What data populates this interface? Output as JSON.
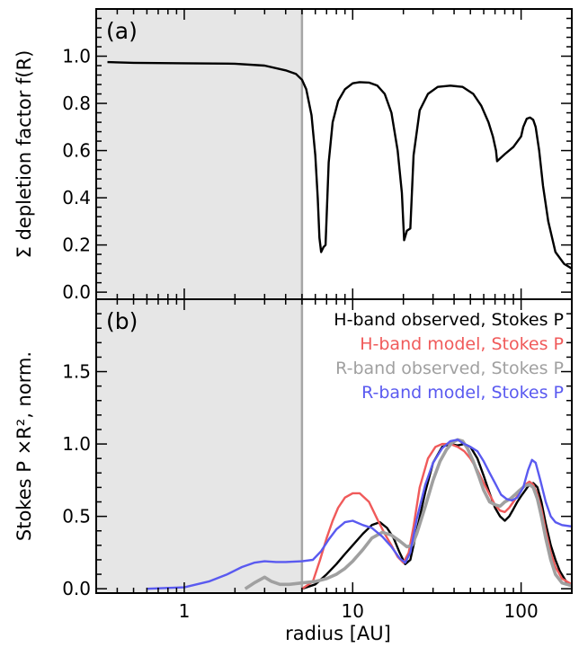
{
  "colors": {
    "shade": "#e6e6e6",
    "vline": "#a6a6a6",
    "black": "#000000",
    "red": "#f05a5a",
    "gray": "#a0a0a0",
    "blue": "#5a5af0"
  },
  "chart_data": [
    {
      "type": "line",
      "panel_label": "(a)",
      "ylabel": "Σ depletion factor f(R)",
      "xscale": "log",
      "xlim": [
        0.3,
        200
      ],
      "ylim": [
        -0.03,
        1.2
      ],
      "yticks": [
        0.0,
        0.2,
        0.4,
        0.6,
        0.8,
        1.0
      ],
      "yticklabels": [
        "0.0",
        "0.2",
        "0.4",
        "0.6",
        "0.8",
        "1.0"
      ],
      "shaded_region": [
        0.3,
        5
      ],
      "vline_x": 5,
      "series": [
        {
          "color": "#000000",
          "x": [
            0.35,
            0.5,
            1,
            2,
            3,
            4,
            4.6,
            5.0,
            5.3,
            5.7,
            6.0,
            6.2,
            6.35,
            6.5,
            6.7,
            6.9,
            7.2,
            7.6,
            8.2,
            9,
            10,
            11,
            12.5,
            14,
            15.5,
            17,
            18.5,
            19.6,
            20.2,
            21,
            22,
            23,
            25,
            28,
            32,
            38,
            45,
            52,
            58,
            64,
            68,
            71,
            72,
            80,
            90,
            100,
            103,
            108,
            113,
            118,
            122,
            128,
            135,
            145,
            160,
            180,
            200
          ],
          "y": [
            0.975,
            0.972,
            0.97,
            0.968,
            0.96,
            0.94,
            0.925,
            0.9,
            0.86,
            0.75,
            0.58,
            0.4,
            0.23,
            0.17,
            0.19,
            0.2,
            0.55,
            0.72,
            0.81,
            0.86,
            0.885,
            0.89,
            0.888,
            0.875,
            0.84,
            0.76,
            0.6,
            0.42,
            0.22,
            0.26,
            0.27,
            0.58,
            0.77,
            0.84,
            0.87,
            0.875,
            0.87,
            0.84,
            0.79,
            0.72,
            0.66,
            0.6,
            0.555,
            0.585,
            0.615,
            0.66,
            0.7,
            0.735,
            0.74,
            0.73,
            0.7,
            0.6,
            0.45,
            0.3,
            0.17,
            0.12,
            0.1
          ]
        }
      ]
    },
    {
      "type": "line",
      "panel_label": "(b)",
      "ylabel": "Stokes P ×R², norm.",
      "xlabel": "radius [AU]",
      "xscale": "log",
      "xlim": [
        0.3,
        200
      ],
      "ylim": [
        -0.03,
        2.0
      ],
      "xticks": [
        1,
        10,
        100
      ],
      "xticklabels": [
        "1",
        "10",
        "100"
      ],
      "yticks": [
        0.0,
        0.5,
        1.0,
        1.5
      ],
      "yticklabels": [
        "0.0",
        "0.5",
        "1.0",
        "1.5"
      ],
      "shaded_region": [
        0.3,
        5
      ],
      "vline_x": 5,
      "legend_position": "top-right",
      "series": [
        {
          "name": "H-band observed, Stokes P",
          "color": "#000000",
          "x": [
            5,
            6,
            7,
            8,
            9,
            10,
            11.5,
            13,
            14.5,
            16,
            17.5,
            19,
            20.5,
            22,
            24,
            27,
            30,
            34,
            38,
            42,
            46,
            50,
            55,
            60,
            65,
            70,
            75,
            80,
            85,
            90,
            95,
            100,
            106,
            112,
            118,
            125,
            132,
            140,
            150,
            160,
            170,
            185,
            200
          ],
          "y": [
            0.0,
            0.03,
            0.1,
            0.17,
            0.24,
            0.3,
            0.38,
            0.44,
            0.46,
            0.42,
            0.35,
            0.25,
            0.17,
            0.2,
            0.4,
            0.67,
            0.87,
            0.98,
            1.0,
            0.99,
            1.0,
            0.98,
            0.9,
            0.78,
            0.66,
            0.56,
            0.5,
            0.47,
            0.5,
            0.55,
            0.6,
            0.64,
            0.68,
            0.72,
            0.73,
            0.7,
            0.6,
            0.45,
            0.3,
            0.2,
            0.12,
            0.05,
            0.02
          ]
        },
        {
          "name": "H-band model, Stokes P",
          "color": "#f05a5a",
          "x": [
            5,
            5.8,
            6.4,
            7,
            7.6,
            8.2,
            9,
            10,
            11,
            12.5,
            14,
            15.5,
            17,
            18.5,
            20,
            21.5,
            23,
            25,
            28,
            31,
            34,
            38,
            42,
            46,
            50,
            55,
            60,
            65,
            70,
            75,
            80,
            85,
            90,
            95,
            100,
            106,
            112,
            118,
            125,
            132,
            140,
            150,
            160,
            175,
            200
          ],
          "y": [
            0.0,
            0.05,
            0.2,
            0.35,
            0.47,
            0.56,
            0.63,
            0.66,
            0.66,
            0.6,
            0.48,
            0.38,
            0.3,
            0.22,
            0.18,
            0.25,
            0.43,
            0.7,
            0.9,
            0.98,
            1.0,
            1.0,
            0.98,
            0.95,
            0.9,
            0.82,
            0.73,
            0.65,
            0.58,
            0.54,
            0.53,
            0.56,
            0.6,
            0.64,
            0.68,
            0.72,
            0.74,
            0.72,
            0.65,
            0.55,
            0.4,
            0.25,
            0.15,
            0.07,
            0.03
          ]
        },
        {
          "name": "R-band observed, Stokes P",
          "color": "#a0a0a0",
          "x": [
            2.3,
            2.6,
            3.0,
            3.3,
            3.7,
            4.2,
            5,
            6,
            7,
            8,
            9,
            10,
            11.5,
            13,
            15,
            17,
            19,
            21,
            22.5,
            24,
            27,
            30,
            33,
            36,
            39,
            42,
            45,
            48,
            52,
            56,
            60,
            65,
            70,
            75,
            80,
            86,
            92,
            98,
            105,
            112,
            118,
            125,
            132,
            140,
            150,
            160,
            175,
            200
          ],
          "y": [
            0.0,
            0.04,
            0.08,
            0.05,
            0.03,
            0.03,
            0.04,
            0.05,
            0.07,
            0.1,
            0.14,
            0.19,
            0.27,
            0.35,
            0.39,
            0.37,
            0.33,
            0.29,
            0.3,
            0.38,
            0.57,
            0.75,
            0.88,
            0.96,
            1.01,
            1.03,
            1.02,
            0.97,
            0.88,
            0.78,
            0.68,
            0.6,
            0.58,
            0.57,
            0.6,
            0.62,
            0.65,
            0.68,
            0.71,
            0.72,
            0.7,
            0.62,
            0.5,
            0.35,
            0.2,
            0.1,
            0.04,
            0.02
          ]
        },
        {
          "name": "R-band model, Stokes P",
          "color": "#5a5af0",
          "x": [
            0.6,
            1,
            1.4,
            1.8,
            2.2,
            2.6,
            3.0,
            3.5,
            4,
            5,
            5.8,
            6.5,
            7.2,
            8,
            9,
            10,
            11.5,
            13,
            15,
            17,
            19,
            20.5,
            22,
            24,
            27,
            30,
            34,
            38,
            42,
            46,
            50,
            55,
            60,
            65,
            70,
            76,
            82,
            88,
            95,
            103,
            110,
            116,
            122,
            130,
            140,
            150,
            160,
            175,
            200
          ],
          "y": [
            0.0,
            0.01,
            0.05,
            0.1,
            0.15,
            0.18,
            0.19,
            0.185,
            0.185,
            0.19,
            0.2,
            0.26,
            0.34,
            0.41,
            0.46,
            0.47,
            0.44,
            0.42,
            0.36,
            0.29,
            0.21,
            0.18,
            0.25,
            0.48,
            0.72,
            0.87,
            0.97,
            1.02,
            1.03,
            1.0,
            0.98,
            0.95,
            0.88,
            0.8,
            0.73,
            0.65,
            0.62,
            0.61,
            0.63,
            0.7,
            0.82,
            0.89,
            0.87,
            0.75,
            0.6,
            0.5,
            0.46,
            0.44,
            0.43
          ]
        }
      ]
    }
  ]
}
